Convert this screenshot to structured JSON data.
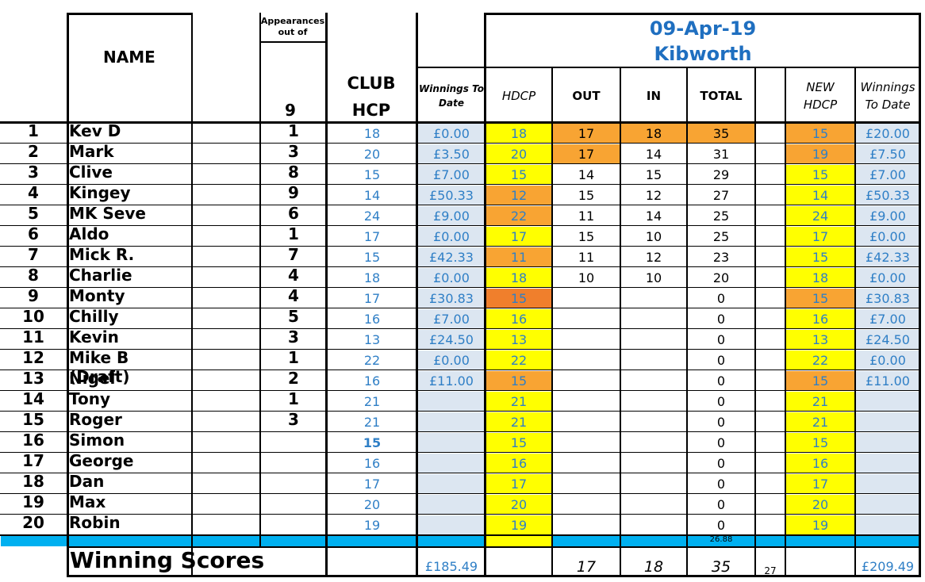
{
  "header": {
    "name_label": "NAME",
    "appearances_label_1": "Appearances",
    "appearances_label_2": "out of",
    "appearances_total": "9",
    "club_label": "CLUB",
    "hcp_label": "HCP",
    "winnings_label_1": "Winnings To",
    "winnings_label_2": "Date",
    "date": "09-Apr-19",
    "venue": "Kibworth",
    "hdcp_label": "HDCP",
    "out_label": "OUT",
    "in_label": "IN",
    "total_label": "TOTAL",
    "new_label_1": "NEW",
    "new_label_2": "HDCP",
    "winnings_end_1": "Winnings",
    "winnings_end_2": "To Date"
  },
  "colors": {
    "yellow": "#ffff00",
    "orange": "#f8a433",
    "deep_orange": "#f07f2c",
    "light_blue": "#dce6f1",
    "cyan": "#00b0f0",
    "title_blue": "#1f6fc0"
  },
  "rows": [
    {
      "num": "1",
      "name": "Kev D",
      "apps": "1",
      "club": "18",
      "win": "£0.00",
      "hdcp": "18",
      "hdcp_color": "yellow",
      "out": "17",
      "out_color": "orange",
      "in": "18",
      "in_color": "orange",
      "total": "35",
      "total_color": "orange",
      "new": "15",
      "new_color": "orange",
      "win2": "£20.00"
    },
    {
      "num": "2",
      "name": "Mark",
      "apps": "3",
      "club": "20",
      "win": "£3.50",
      "hdcp": "20",
      "hdcp_color": "yellow",
      "out": "17",
      "out_color": "orange",
      "in": "14",
      "in_color": "",
      "total": "31",
      "total_color": "",
      "new": "19",
      "new_color": "orange",
      "win2": "£7.50"
    },
    {
      "num": "3",
      "name": "Clive",
      "apps": "8",
      "club": "15",
      "win": "£7.00",
      "hdcp": "15",
      "hdcp_color": "yellow",
      "out": "14",
      "out_color": "",
      "in": "15",
      "in_color": "",
      "total": "29",
      "total_color": "",
      "new": "15",
      "new_color": "yellow",
      "win2": "£7.00"
    },
    {
      "num": "4",
      "name": "Kingey",
      "apps": "9",
      "club": "14",
      "win": "£50.33",
      "hdcp": "12",
      "hdcp_color": "orange",
      "out": "15",
      "out_color": "",
      "in": "12",
      "in_color": "",
      "total": "27",
      "total_color": "",
      "new": "14",
      "new_color": "yellow",
      "win2": "£50.33"
    },
    {
      "num": "5",
      "name": "MK Seve",
      "apps": "6",
      "club": "24",
      "win": "£9.00",
      "hdcp": "22",
      "hdcp_color": "orange",
      "out": "11",
      "out_color": "",
      "in": "14",
      "in_color": "",
      "total": "25",
      "total_color": "",
      "new": "24",
      "new_color": "yellow",
      "win2": "£9.00"
    },
    {
      "num": "6",
      "name": "Aldo",
      "apps": "1",
      "club": "17",
      "win": "£0.00",
      "hdcp": "17",
      "hdcp_color": "yellow",
      "out": "15",
      "out_color": "",
      "in": "10",
      "in_color": "",
      "total": "25",
      "total_color": "",
      "new": "17",
      "new_color": "yellow",
      "win2": "£0.00"
    },
    {
      "num": "7",
      "name": "Mick R.",
      "apps": "7",
      "club": "15",
      "win": "£42.33",
      "hdcp": "11",
      "hdcp_color": "orange",
      "out": "11",
      "out_color": "",
      "in": "12",
      "in_color": "",
      "total": "23",
      "total_color": "",
      "new": "15",
      "new_color": "yellow",
      "win2": "£42.33"
    },
    {
      "num": "8",
      "name": "Charlie",
      "apps": "4",
      "club": "18",
      "win": "£0.00",
      "hdcp": "18",
      "hdcp_color": "yellow",
      "out": "10",
      "out_color": "",
      "in": "10",
      "in_color": "",
      "total": "20",
      "total_color": "",
      "new": "18",
      "new_color": "yellow",
      "win2": "£0.00"
    },
    {
      "num": "9",
      "name": "Monty",
      "apps": "4",
      "club": "17",
      "win": "£30.83",
      "hdcp": "15",
      "hdcp_color": "deep_orange",
      "out": "",
      "out_color": "",
      "in": "",
      "in_color": "",
      "total": "0",
      "total_color": "",
      "new": "15",
      "new_color": "orange",
      "win2": "£30.83"
    },
    {
      "num": "10",
      "name": "Chilly",
      "apps": "5",
      "club": "16",
      "win": "£7.00",
      "hdcp": "16",
      "hdcp_color": "yellow",
      "out": "",
      "out_color": "",
      "in": "",
      "in_color": "",
      "total": "0",
      "total_color": "",
      "new": "16",
      "new_color": "yellow",
      "win2": "£7.00"
    },
    {
      "num": "11",
      "name": "Kevin",
      "apps": "3",
      "club": "13",
      "win": "£24.50",
      "hdcp": "13",
      "hdcp_color": "yellow",
      "out": "",
      "out_color": "",
      "in": "",
      "in_color": "",
      "total": "0",
      "total_color": "",
      "new": "13",
      "new_color": "yellow",
      "win2": "£24.50"
    },
    {
      "num": "12",
      "name": "Mike B (Draft)",
      "apps": "1",
      "club": "22",
      "win": "£0.00",
      "hdcp": "22",
      "hdcp_color": "yellow",
      "out": "",
      "out_color": "",
      "in": "",
      "in_color": "",
      "total": "0",
      "total_color": "",
      "new": "22",
      "new_color": "yellow",
      "win2": "£0.00"
    },
    {
      "num": "13",
      "name": "Nigel",
      "apps": "2",
      "club": "16",
      "win": "£11.00",
      "hdcp": "15",
      "hdcp_color": "orange",
      "out": "",
      "out_color": "",
      "in": "",
      "in_color": "",
      "total": "0",
      "total_color": "",
      "new": "15",
      "new_color": "orange",
      "win2": "£11.00"
    },
    {
      "num": "14",
      "name": "Tony",
      "apps": "1",
      "club": "21",
      "win": "",
      "hdcp": "21",
      "hdcp_color": "yellow",
      "out": "",
      "out_color": "",
      "in": "",
      "in_color": "",
      "total": "0",
      "total_color": "",
      "new": "21",
      "new_color": "yellow",
      "win2": ""
    },
    {
      "num": "15",
      "name": "Roger",
      "apps": "3",
      "club": "21",
      "win": "",
      "hdcp": "21",
      "hdcp_color": "yellow",
      "out": "",
      "out_color": "",
      "in": "",
      "in_color": "",
      "total": "0",
      "total_color": "",
      "new": "21",
      "new_color": "yellow",
      "win2": ""
    },
    {
      "num": "16",
      "name": "Simon",
      "apps": "",
      "club": "15",
      "club_bold": true,
      "win": "",
      "hdcp": "15",
      "hdcp_color": "yellow",
      "out": "",
      "out_color": "",
      "in": "",
      "in_color": "",
      "total": "0",
      "total_color": "",
      "new": "15",
      "new_color": "yellow",
      "win2": ""
    },
    {
      "num": "17",
      "name": "George",
      "apps": "",
      "club": "16",
      "win": "",
      "hdcp": "16",
      "hdcp_color": "yellow",
      "out": "",
      "out_color": "",
      "in": "",
      "in_color": "",
      "total": "0",
      "total_color": "",
      "new": "16",
      "new_color": "yellow",
      "win2": ""
    },
    {
      "num": "18",
      "name": "Dan",
      "apps": "",
      "club": "17",
      "win": "",
      "hdcp": "17",
      "hdcp_color": "yellow",
      "out": "",
      "out_color": "",
      "in": "",
      "in_color": "",
      "total": "0",
      "total_color": "",
      "new": "17",
      "new_color": "yellow",
      "win2": ""
    },
    {
      "num": "19",
      "name": "Max",
      "apps": "",
      "club": "20",
      "win": "",
      "hdcp": "20",
      "hdcp_color": "yellow",
      "out": "",
      "out_color": "",
      "in": "",
      "in_color": "",
      "total": "0",
      "total_color": "",
      "new": "20",
      "new_color": "yellow",
      "win2": ""
    },
    {
      "num": "20",
      "name": "Robin",
      "apps": "",
      "club": "19",
      "win": "",
      "hdcp": "19",
      "hdcp_color": "yellow",
      "out": "",
      "out_color": "",
      "in": "",
      "in_color": "",
      "total": "0",
      "total_color": "",
      "new": "19",
      "new_color": "yellow",
      "win2": ""
    }
  ],
  "summary_row": {
    "total_avg": "26.88"
  },
  "footer": {
    "label": "Winning Scores",
    "win_total": "£185.49",
    "out": "17",
    "in": "18",
    "total": "35",
    "extra": "27",
    "win2_total": "£209.49"
  }
}
